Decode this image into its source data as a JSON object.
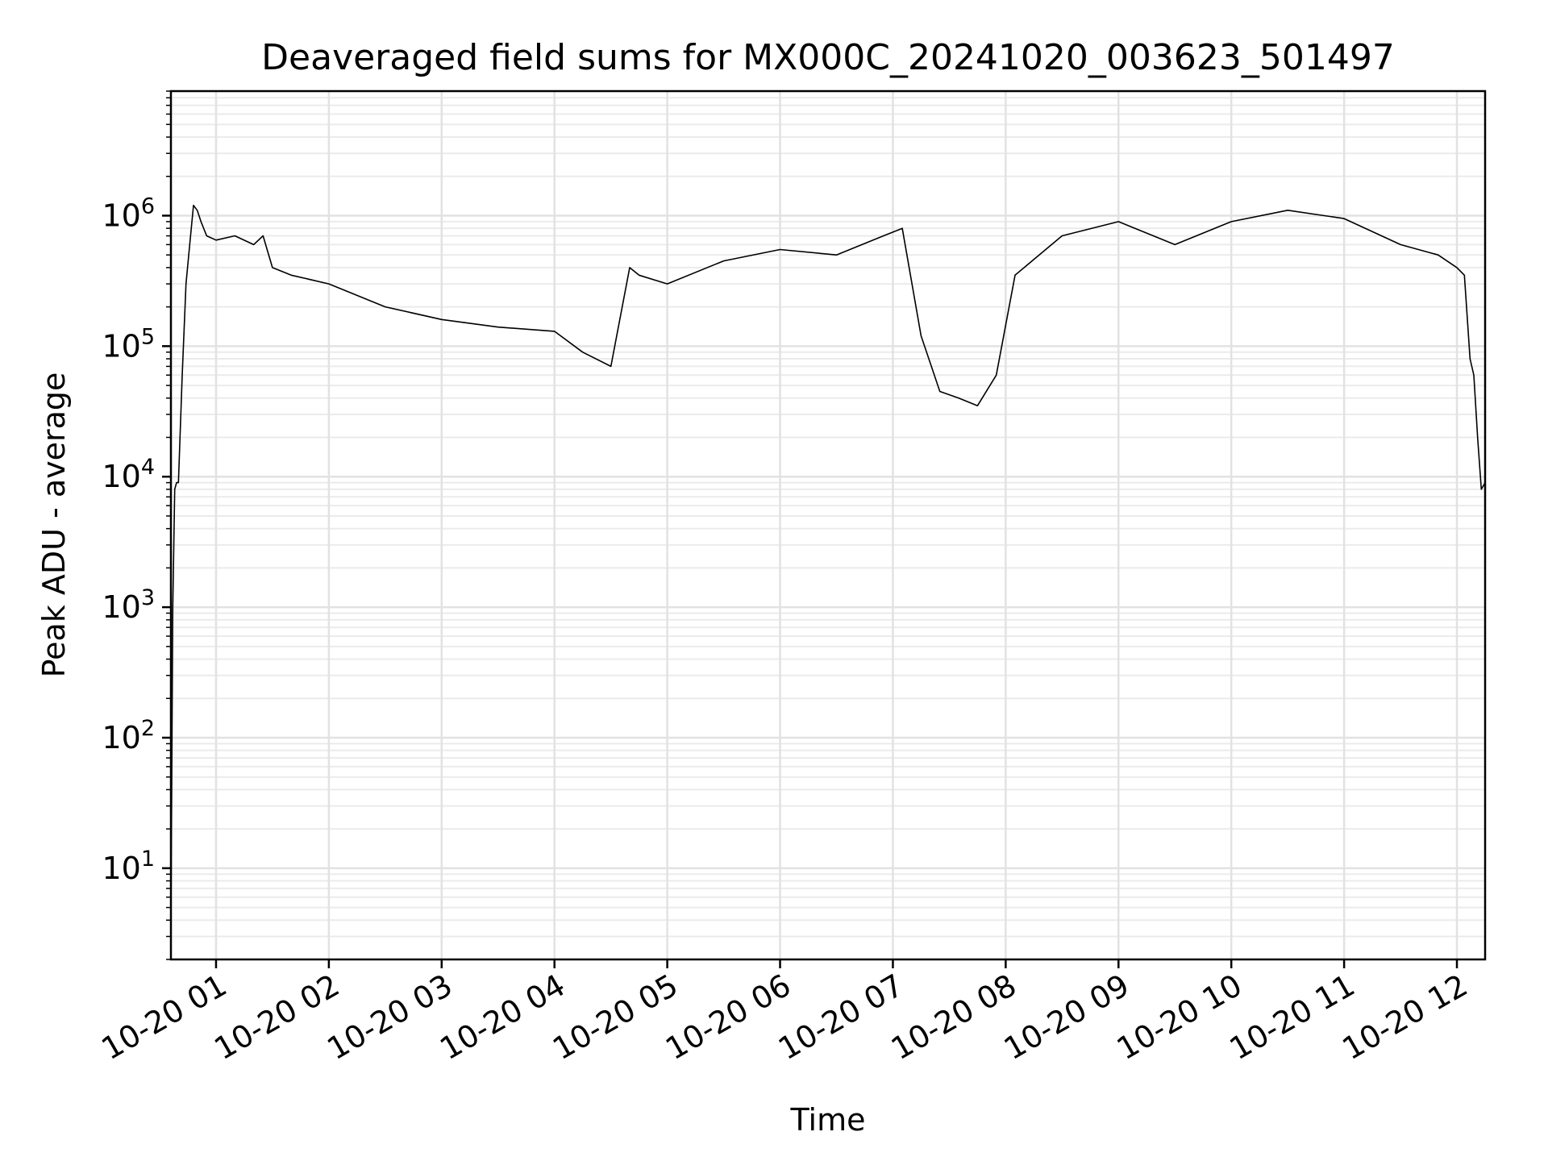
{
  "chart_data": {
    "type": "line",
    "title": "Deaveraged field sums for MX000C_20241020_003623_501497",
    "xlabel": "Time",
    "ylabel": "Peak ADU - average",
    "y_scale": "log",
    "ylim": [
      2,
      9000000
    ],
    "xlim": [
      "2024-10-20 00:36",
      "2024-10-20 12:15"
    ],
    "grid": true,
    "line_color": "#000000",
    "x_ticks": [
      {
        "value": "2024-10-20 01:00",
        "label": "10-20 01"
      },
      {
        "value": "2024-10-20 02:00",
        "label": "10-20 02"
      },
      {
        "value": "2024-10-20 03:00",
        "label": "10-20 03"
      },
      {
        "value": "2024-10-20 04:00",
        "label": "10-20 04"
      },
      {
        "value": "2024-10-20 05:00",
        "label": "10-20 05"
      },
      {
        "value": "2024-10-20 06:00",
        "label": "10-20 06"
      },
      {
        "value": "2024-10-20 07:00",
        "label": "10-20 07"
      },
      {
        "value": "2024-10-20 08:00",
        "label": "10-20 08"
      },
      {
        "value": "2024-10-20 09:00",
        "label": "10-20 09"
      },
      {
        "value": "2024-10-20 10:00",
        "label": "10-20 10"
      },
      {
        "value": "2024-10-20 11:00",
        "label": "10-20 11"
      },
      {
        "value": "2024-10-20 12:00",
        "label": "10-20 12"
      }
    ],
    "y_ticks": [
      {
        "value": 10,
        "base": "10",
        "exp": "1"
      },
      {
        "value": 100,
        "base": "10",
        "exp": "2"
      },
      {
        "value": 1000,
        "base": "10",
        "exp": "3"
      },
      {
        "value": 10000,
        "base": "10",
        "exp": "4"
      },
      {
        "value": 100000,
        "base": "10",
        "exp": "5"
      },
      {
        "value": 1000000,
        "base": "10",
        "exp": "6"
      }
    ],
    "series": [
      {
        "x": [
          "2024-10-20 00:36",
          "2024-10-20 00:37",
          "2024-10-20 00:38",
          "2024-10-20 00:39",
          "2024-10-20 00:40",
          "2024-10-20 00:42",
          "2024-10-20 00:44",
          "2024-10-20 00:46",
          "2024-10-20 00:48",
          "2024-10-20 00:50",
          "2024-10-20 00:52",
          "2024-10-20 00:55",
          "2024-10-20 01:00",
          "2024-10-20 01:10",
          "2024-10-20 01:20",
          "2024-10-20 01:25",
          "2024-10-20 01:30",
          "2024-10-20 01:40",
          "2024-10-20 02:00",
          "2024-10-20 02:30",
          "2024-10-20 03:00",
          "2024-10-20 03:30",
          "2024-10-20 04:00",
          "2024-10-20 04:15",
          "2024-10-20 04:30",
          "2024-10-20 04:40",
          "2024-10-20 04:45",
          "2024-10-20 05:00",
          "2024-10-20 05:30",
          "2024-10-20 06:00",
          "2024-10-20 06:30",
          "2024-10-20 06:55",
          "2024-10-20 07:05",
          "2024-10-20 07:15",
          "2024-10-20 07:25",
          "2024-10-20 07:35",
          "2024-10-20 07:45",
          "2024-10-20 07:55",
          "2024-10-20 08:05",
          "2024-10-20 08:30",
          "2024-10-20 09:00",
          "2024-10-20 09:30",
          "2024-10-20 10:00",
          "2024-10-20 10:30",
          "2024-10-20 11:00",
          "2024-10-20 11:30",
          "2024-10-20 11:50",
          "2024-10-20 12:00",
          "2024-10-20 12:04",
          "2024-10-20 12:07",
          "2024-10-20 12:09",
          "2024-10-20 12:11",
          "2024-10-20 12:13",
          "2024-10-20 12:15"
        ],
        "y": [
          4,
          1000,
          8000,
          9000,
          9000,
          60000,
          300000,
          600000,
          1200000,
          1100000,
          900000,
          700000,
          650000,
          700000,
          600000,
          700000,
          400000,
          350000,
          300000,
          200000,
          160000,
          140000,
          130000,
          90000,
          70000,
          400000,
          350000,
          300000,
          450000,
          550000,
          500000,
          700000,
          800000,
          120000,
          45000,
          40000,
          35000,
          60000,
          350000,
          700000,
          900000,
          600000,
          900000,
          1100000,
          950000,
          600000,
          500000,
          400000,
          350000,
          80000,
          60000,
          20000,
          8000,
          9000
        ]
      }
    ]
  }
}
